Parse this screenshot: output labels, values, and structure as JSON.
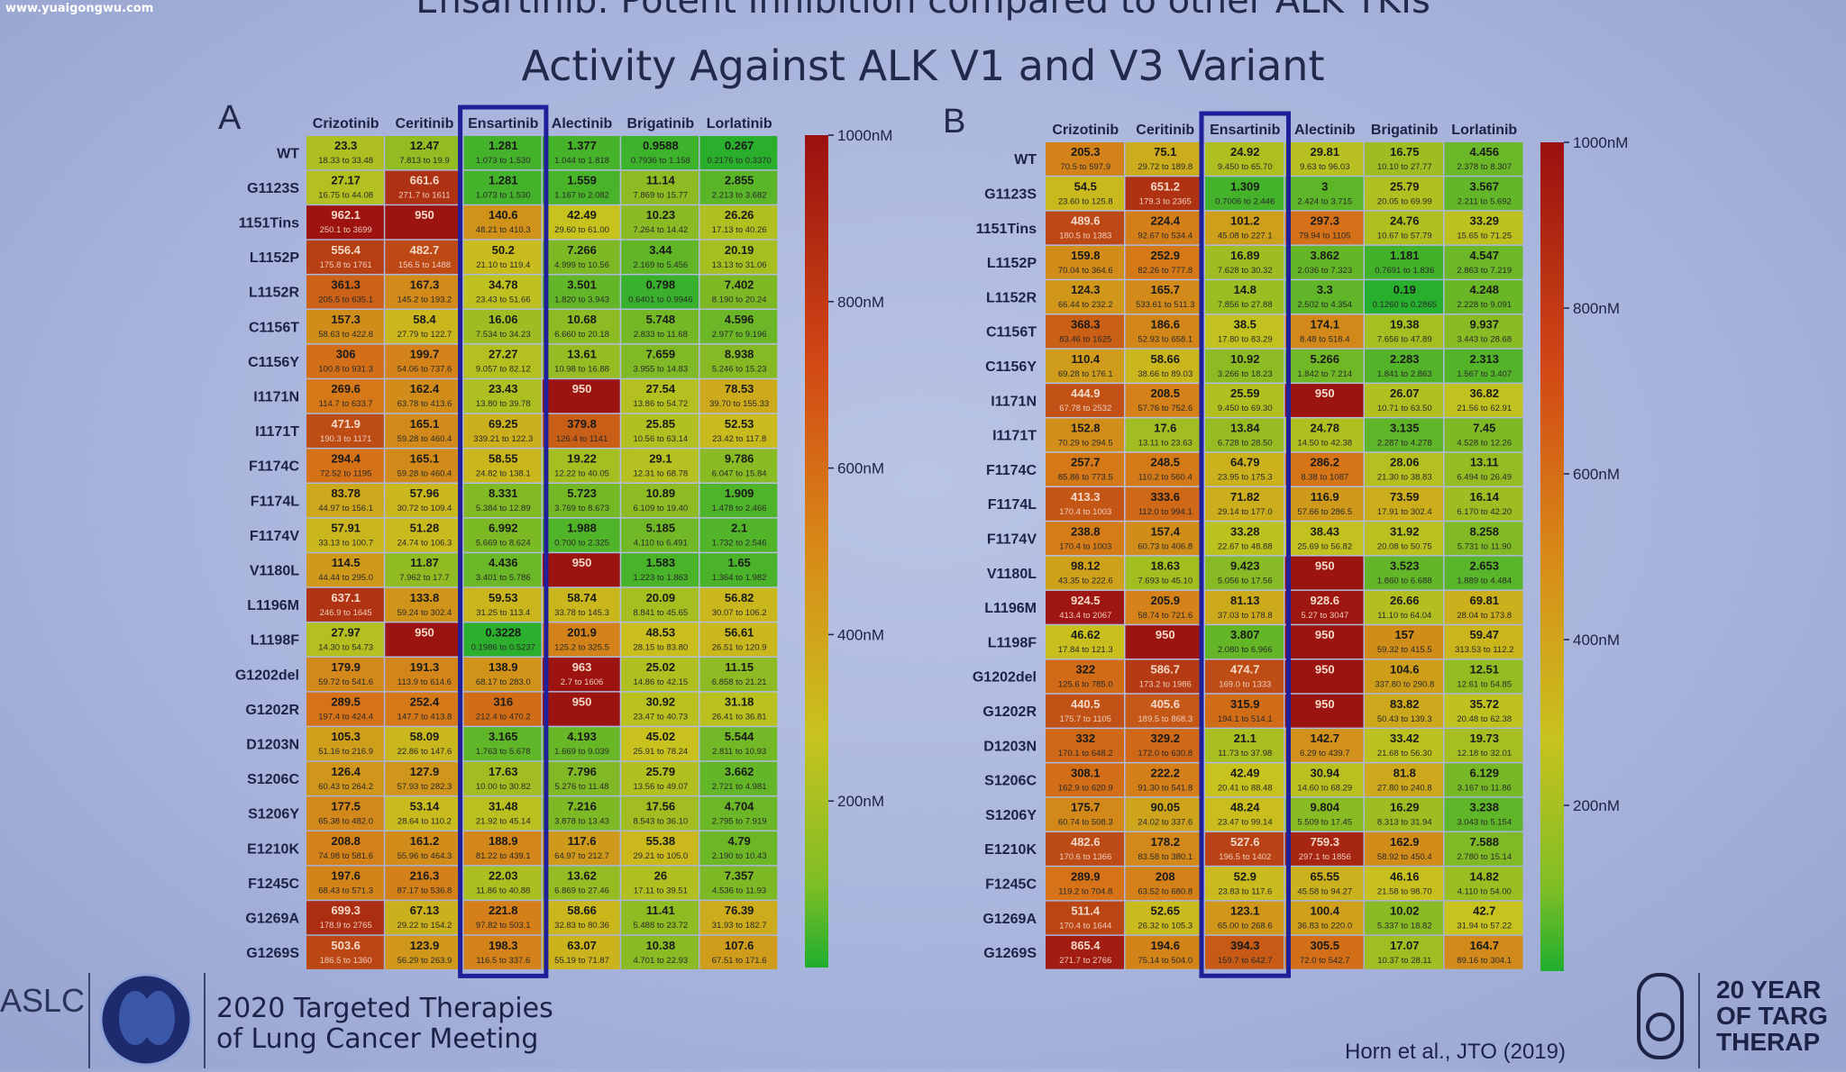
{
  "watermark": "www.yuaigongwu.com",
  "title_line1": "Ensartinib: Potent Inhibition compared to other ALK TKIs",
  "title_line2": "Activity Against ALK V1 and V3 Variant",
  "colors": {
    "highlight_box": "#1f1f9a",
    "scale_low": "#1fae2e",
    "scale_mid": "#c8c21e",
    "scale_high": "#9a1010"
  },
  "footer": {
    "aslc": "ASLC",
    "meeting_line1": "2020 Targeted Therapies",
    "meeting_line2": "of Lung Cancer Meeting",
    "citation": "Horn et al., JTO (2019)",
    "years_line1": "20 YEAR",
    "years_line2": "OF TARG",
    "years_line3": "THERAP"
  },
  "chart_data": [
    {
      "type": "heatmap",
      "panel": "A",
      "columns": [
        "Crizotinib",
        "Ceritinib",
        "Ensartinib",
        "Alectinib",
        "Brigatinib",
        "Lorlatinib"
      ],
      "highlighted_column": "Ensartinib",
      "rows": [
        "WT",
        "G1123S",
        "1151Tins",
        "L1152P",
        "L1152R",
        "C1156T",
        "C1156Y",
        "I1171N",
        "I1171T",
        "F1174C",
        "F1174L",
        "F1174V",
        "V1180L",
        "L1196M",
        "L1198F",
        "G1202del",
        "G1202R",
        "D1203N",
        "S1206C",
        "S1206Y",
        "E1210K",
        "F1245C",
        "G1269A",
        "G1269S"
      ],
      "values": [
        [
          23.3,
          12.47,
          1.281,
          1.377,
          0.9588,
          0.267
        ],
        [
          27.17,
          661.6,
          1.281,
          1.559,
          11.14,
          2.855
        ],
        [
          962.1,
          950,
          140.6,
          42.49,
          10.23,
          26.26
        ],
        [
          556.4,
          482.7,
          50.2,
          7.266,
          3.44,
          20.19
        ],
        [
          361.3,
          167.3,
          34.78,
          3.501,
          0.798,
          7.402
        ],
        [
          157.3,
          58.4,
          16.06,
          10.68,
          5.748,
          4.596
        ],
        [
          306,
          199.7,
          27.27,
          13.61,
          7.659,
          8.938
        ],
        [
          269.6,
          162.4,
          23.43,
          950,
          27.54,
          78.53
        ],
        [
          471.9,
          165.1,
          69.25,
          379.8,
          25.85,
          52.53
        ],
        [
          294.4,
          165.1,
          58.55,
          19.22,
          29.1,
          9.786
        ],
        [
          83.78,
          57.96,
          8.331,
          5.723,
          10.89,
          1.909
        ],
        [
          57.91,
          51.28,
          6.992,
          1.988,
          5.185,
          2.1
        ],
        [
          114.5,
          11.87,
          4.436,
          950,
          1.583,
          1.65
        ],
        [
          637.1,
          133.8,
          59.53,
          58.74,
          20.09,
          56.82
        ],
        [
          27.97,
          950,
          0.3228,
          201.9,
          48.53,
          56.61
        ],
        [
          179.9,
          191.3,
          138.9,
          963,
          25.02,
          11.15
        ],
        [
          289.5,
          252.4,
          316,
          950,
          30.92,
          31.18
        ],
        [
          105.3,
          58.09,
          3.165,
          4.193,
          45.02,
          5.544
        ],
        [
          126.4,
          127.9,
          17.63,
          7.796,
          25.79,
          3.662
        ],
        [
          177.5,
          53.14,
          31.48,
          7.216,
          17.56,
          4.704
        ],
        [
          208.8,
          161.2,
          188.9,
          117.6,
          55.38,
          4.79
        ],
        [
          197.6,
          216.3,
          22.03,
          13.62,
          26.0,
          7.357
        ],
        [
          699.3,
          67.13,
          221.8,
          58.66,
          11.41,
          76.39
        ],
        [
          503.6,
          123.9,
          198.3,
          63.07,
          10.38,
          107.6
        ]
      ],
      "ci": [
        [
          "18.33 to 33.48",
          "7.813 to 19.9",
          "1.073 to 1.530",
          "1.044 to 1.818",
          "0.7936 to 1.158",
          "0.2176 to 0.3370"
        ],
        [
          "16.75 to 44.08",
          "271.7 to 1611",
          "1.073 to 1.530",
          "1.167 to 2.082",
          "7.869 to 15.77",
          "2.213 to 3.682"
        ],
        [
          "250.1 to 3699",
          "",
          "48.21 to 410.3",
          "29.60 to 61.00",
          "7.264 to 14.42",
          "17.13 to 40.26"
        ],
        [
          "175.8 to 1761",
          "156.5 to 1488",
          "21.10 to 119.4",
          "4.999 to 10.56",
          "2.169 to 5.456",
          "13.13 to 31.06"
        ],
        [
          "205.5 to 635.1",
          "145.2 to 193.2",
          "23.43 to 51.66",
          "1.820 to 3.943",
          "0.6401 to 0.9946",
          "8.190 to 20.24"
        ],
        [
          "58.63 to 422.8",
          "27.79 to 122.7",
          "7.534 to 34.23",
          "6.660 to 20.18",
          "2.833 to 11.68",
          "2.977 to 9.196"
        ],
        [
          "100.8 to 931.3",
          "54.06 to 737.6",
          "9.057 to 82.12",
          "10.98 to 16.88",
          "3.955 to 14.83",
          "5.246 to 15.23"
        ],
        [
          "114.7 to 633.7",
          "63.78 to 413.6",
          "13.80 to 39.78",
          "",
          "13.86 to 54.72",
          "39.70 to 155.33"
        ],
        [
          "190.3 to 1171",
          "59.28 to 460.4",
          "339.21 to 122.3",
          "126.4 to 1141",
          "10.56 to 63.14",
          "23.42 to 117.8"
        ],
        [
          "72.52 to 1195",
          "59.28 to 460.4",
          "24.82 to 138.1",
          "12.22 to 40.05",
          "12.31 to 68.78",
          "6.047 to 15.84"
        ],
        [
          "44.97 to 156.1",
          "30.72 to 109.4",
          "5.384 to 12.89",
          "3.769 to 8.673",
          "6.109 to 19.40",
          "1.478 to 2.466"
        ],
        [
          "33.13 to 100.7",
          "24.74 to 106.3",
          "5.669 to 8.624",
          "0.700 to 2.325",
          "4.110 to 6.491",
          "1.732 to 2.546"
        ],
        [
          "44.44 to 295.0",
          "7.962 to 17.7",
          "3.401 to 5.786",
          "",
          "1.223 to 1.863",
          "1.364 to 1.982"
        ],
        [
          "246.9 to 1645",
          "59.24 to 302.4",
          "31.25 to 113.4",
          "33.78 to 145.3",
          "8.841 to 45.65",
          "30.07 to 106.2"
        ],
        [
          "14.30 to 54.73",
          "",
          "0.1986 to 0.5237",
          "125.2 to 325.5",
          "28.15 to 83.80",
          "26.51 to 120.9"
        ],
        [
          "59.72 to 541.6",
          "113.9 to 614.6",
          "68.17 to 283.0",
          "2.7 to 1606",
          "14.86 to 42.15",
          "6.858 to 21.21"
        ],
        [
          "197.4 to 424.4",
          "147.7 to 413.8",
          "212.4 to 470.2",
          "",
          "23.47 to 40.73",
          "26.41 to 36.81"
        ],
        [
          "51.16 to 216.9",
          "22.86 to 147.6",
          "1.763 to 5.678",
          "1.669 to 9.039",
          "25.91 to 78.24",
          "2.811 to 10.93"
        ],
        [
          "60.43 to 264.2",
          "57.93 to 282.3",
          "10.00 to 30.82",
          "5.276 to 11.48",
          "13.56 to 49.07",
          "2.721 to 4.981"
        ],
        [
          "65.38 to 482.0",
          "28.64 to 110.2",
          "21.92 to 45.14",
          "3.878 to 13.43",
          "8.543 to 36.10",
          "2.795 to 7.919"
        ],
        [
          "74.98 to 581.6",
          "55.96 to 464.3",
          "81.22 to 439.1",
          "64.97 to 212.7",
          "29.21 to 105.0",
          "2.190 to 10.43"
        ],
        [
          "68.43 to 571.3",
          "87.17 to 536.8",
          "11.86 to 40.88",
          "6.869 to 27.46",
          "17.11 to 39.51",
          "4.536 to 11.93"
        ],
        [
          "178.9 to 2765",
          "29.22 to 154.2",
          "97.82 to 503.1",
          "32.83 to 80.36",
          "5.488 to 23.72",
          "31.93 to 182.7"
        ],
        [
          "186.5 to 1360",
          "56.29 to 263.9",
          "116.5 to 337.6",
          "55.19 to 71.87",
          "4.701 to 22.93",
          "67.51 to 171.6"
        ]
      ],
      "colorbar": {
        "range": [
          0,
          1000
        ],
        "unit": "nM",
        "tick_labels": [
          "1000nM",
          "800nM",
          "600nM",
          "400nM",
          "200nM"
        ]
      }
    },
    {
      "type": "heatmap",
      "panel": "B",
      "columns": [
        "Crizotinib",
        "Ceritinib",
        "Ensartinib",
        "Alectinib",
        "Brigatinib",
        "Lorlatinib"
      ],
      "highlighted_column": "Ensartinib",
      "rows": [
        "WT",
        "G1123S",
        "1151Tins",
        "L1152P",
        "L1152R",
        "C1156T",
        "C1156Y",
        "I1171N",
        "I1171T",
        "F1174C",
        "F1174L",
        "F1174V",
        "V1180L",
        "L1196M",
        "L1198F",
        "G1202del",
        "G1202R",
        "D1203N",
        "S1206C",
        "S1206Y",
        "E1210K",
        "F1245C",
        "G1269A",
        "G1269S"
      ],
      "values": [
        [
          205.3,
          75.1,
          24.92,
          29.81,
          16.75,
          4.456
        ],
        [
          54.5,
          651.2,
          1.309,
          3.0,
          25.79,
          3.567
        ],
        [
          489.6,
          224.4,
          101.2,
          297.3,
          24.76,
          33.29
        ],
        [
          159.8,
          252.9,
          16.89,
          3.862,
          1.181,
          4.547
        ],
        [
          124.3,
          165.7,
          14.8,
          3.3,
          0.19,
          4.248
        ],
        [
          368.3,
          186.6,
          38.5,
          174.1,
          19.38,
          9.937
        ],
        [
          110.4,
          58.66,
          10.92,
          5.266,
          2.283,
          2.313
        ],
        [
          444.9,
          208.5,
          25.59,
          950,
          26.07,
          36.82
        ],
        [
          152.8,
          17.6,
          13.84,
          24.78,
          3.135,
          7.45
        ],
        [
          257.7,
          248.5,
          64.79,
          286.2,
          28.06,
          13.11
        ],
        [
          413.3,
          333.6,
          71.82,
          116.9,
          73.59,
          16.14
        ],
        [
          238.8,
          157.4,
          33.28,
          38.43,
          31.92,
          8.258
        ],
        [
          98.12,
          18.63,
          9.423,
          950,
          3.523,
          2.653
        ],
        [
          924.5,
          205.9,
          81.13,
          928.6,
          26.66,
          69.81
        ],
        [
          46.62,
          950,
          3.807,
          950,
          157.0,
          59.47
        ],
        [
          322.0,
          586.7,
          474.7,
          950,
          104.6,
          12.51
        ],
        [
          440.5,
          405.6,
          315.9,
          950,
          83.82,
          35.72
        ],
        [
          332.0,
          329.2,
          21.1,
          142.7,
          33.42,
          19.73
        ],
        [
          308.1,
          222.2,
          42.49,
          30.94,
          81.8,
          6.129
        ],
        [
          175.7,
          90.05,
          48.24,
          9.804,
          16.29,
          3.238
        ],
        [
          482.6,
          178.2,
          527.6,
          759.3,
          162.9,
          7.588
        ],
        [
          289.9,
          208.0,
          52.9,
          65.55,
          46.16,
          14.82
        ],
        [
          511.4,
          52.65,
          123.1,
          100.4,
          10.02,
          42.7
        ],
        [
          865.4,
          194.6,
          394.3,
          305.5,
          17.07,
          164.7
        ]
      ],
      "ci": [
        [
          "70.5 to 597.9",
          "29.72 to 189.8",
          "9.450 to 65.70",
          "9.63 to 96.03",
          "10.10 to 27.77",
          "2.378 to 8.307"
        ],
        [
          "23.60 to 125.8",
          "179.3 to 2365",
          "0.7006 to 2.446",
          "2.424 to 3.715",
          "20.05 to 69.99",
          "2.211 to 5.692"
        ],
        [
          "180.5 to 1383",
          "92.67 to 534.4",
          "45.08 to 227.1",
          "79.94 to 1105",
          "10.67 to 57.79",
          "15.65 to 71.25"
        ],
        [
          "70.04 to 364.6",
          "82.26 to 777.8",
          "7.628 to 30.32",
          "2.036 to 7.323",
          "0.7691 to 1.836",
          "2.863 to 7.219"
        ],
        [
          "66.44 to 232.2",
          "533.61 to 511.3",
          "7.856 to 27.88",
          "2.502 to 4.354",
          "0.1260 to 0.2865",
          "2.228 to 9.091"
        ],
        [
          "83.46 to 1625",
          "52.93 to 658.1",
          "17.80 to 83.29",
          "8.48 to 518.4",
          "7.656 to 47.89",
          "3.443 to 28.68"
        ],
        [
          "69.28 to 176.1",
          "38.66 to 89.03",
          "3.266 to 18.23",
          "1.842 to 7.214",
          "1.841 to 2.863",
          "1.567 to 3.407"
        ],
        [
          "67.78 to 2532",
          "57.76 to 752.6",
          "9.450 to 69.30",
          "",
          "10.71 to 63.50",
          "21.56 to 62.91"
        ],
        [
          "70.29 to 294.5",
          "13.11 to 23.63",
          "6.728 to 28.50",
          "14.50 to 42.38",
          "2.287 to 4.278",
          "4.528 to 12.26"
        ],
        [
          "85.86 to 773.5",
          "110.2 to 560.4",
          "23.95 to 175.3",
          "8.38 to 1087",
          "21.30 to 38.83",
          "6.494 to 26.49"
        ],
        [
          "170.4 to 1003",
          "112.0 to 994.1",
          "29.14 to 177.0",
          "57.66 to 286.5",
          "17.91 to 302.4",
          "6.170 to 42.20"
        ],
        [
          "170.4 to 1003",
          "60.73 to 406.8",
          "22.67 to 48.88",
          "25.69 to 56.82",
          "20.08 to 50.75",
          "5.731 to 11.90"
        ],
        [
          "43.35 to 222.6",
          "7.693 to 45.10",
          "5.056 to 17.56",
          "",
          "1.860 to 6.688",
          "1.889 to 4.484"
        ],
        [
          "413.4 to 2067",
          "58.74 to 721.6",
          "37.03 to 178.8",
          "5.27 to 3047",
          "11.10 to 64.04",
          "28.04 to 173.8"
        ],
        [
          "17.84 to 121.3",
          "",
          "2.080 to 6.966",
          "",
          "59.32 to 415.5",
          "313.53 to 112.2"
        ],
        [
          "125.6 to 785.0",
          "173.2 to 1986",
          "169.0 to 1333",
          "",
          "337.80 to 290.8",
          "12.61 to 54.85"
        ],
        [
          "175.7 to 1105",
          "189.5 to 868.3",
          "194.1 to 514.1",
          "",
          "50.43 to 139.3",
          "20.48 to 62.38"
        ],
        [
          "170.1 to 648.2",
          "172.0 to 630.8",
          "11.73 to 37.98",
          "6.29 to 439.7",
          "21.68 to 56.30",
          "12.18 to 32.01"
        ],
        [
          "162.9 to 620.9",
          "91.30 to 541.8",
          "20.41 to 88.48",
          "14.60 to 68.29",
          "27.80 to 240.8",
          "3.167 to 11.86"
        ],
        [
          "60.74 to 508.3",
          "24.02 to 337.6",
          "23.47 to 99.14",
          "5.509 to 17.45",
          "8.313 to 31.94",
          "3.043 to 5.154"
        ],
        [
          "170.6 to 1366",
          "83.58 to 380.1",
          "196.5 to 1402",
          "297.1 to 1856",
          "58.92 to 450.4",
          "2.780 to 15.14"
        ],
        [
          "119.2 to 704.8",
          "63.52 to 680.8",
          "23.83 to 117.6",
          "45.58 to 94.27",
          "21.58 to 98.70",
          "4.110 to 54.00"
        ],
        [
          "170.4 to 1644",
          "26.32 to 105.3",
          "65.00 to 268.6",
          "36.83 to 220.0",
          "5.337 to 18.82",
          "31.94 to 57.22"
        ],
        [
          "271.7 to 2766",
          "75.14 to 504.0",
          "159.7 to 642.7",
          "72.0 to 542.7",
          "10.37 to 28.11",
          "89.16 to 304.1"
        ]
      ],
      "colorbar": {
        "range": [
          0,
          1000
        ],
        "unit": "nM",
        "tick_labels": [
          "1000nM",
          "800nM",
          "600nM",
          "400nM",
          "200nM"
        ]
      }
    }
  ]
}
